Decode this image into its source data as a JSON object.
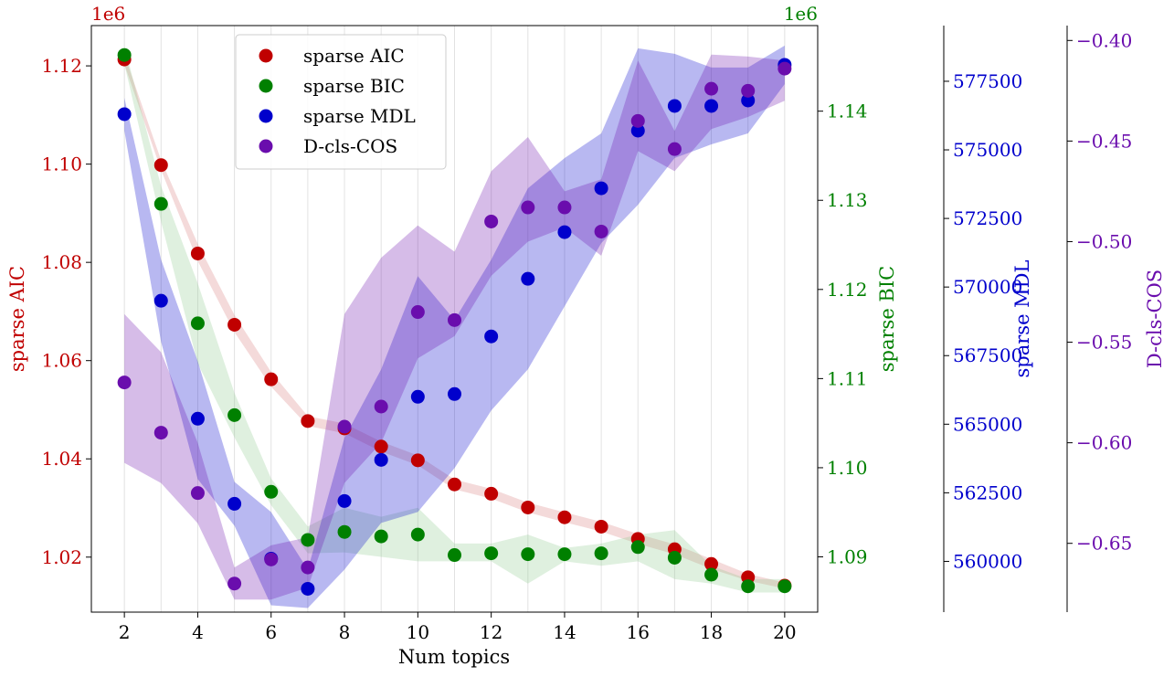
{
  "chart_data": {
    "type": "scatter",
    "xlabel": "Num topics",
    "x": [
      2,
      3,
      4,
      5,
      6,
      7,
      8,
      9,
      10,
      11,
      12,
      13,
      14,
      15,
      16,
      17,
      18,
      19,
      20
    ],
    "xlim": [
      1.1,
      20.9
    ],
    "xticks": [
      2,
      4,
      6,
      8,
      10,
      12,
      14,
      16,
      18,
      20
    ],
    "legend_position": "top-left",
    "axes": [
      {
        "name": "sparse AIC",
        "ylabel": "sparse AIC",
        "color": "#c00000",
        "side": "left",
        "offset_label": "1e6",
        "ylim": [
          1.0088,
          1.1282
        ],
        "ticks": [
          1.02,
          1.04,
          1.06,
          1.08,
          1.1,
          1.12
        ],
        "tick_labels": [
          "1.02",
          "1.04",
          "1.06",
          "1.08",
          "1.10",
          "1.12"
        ]
      },
      {
        "name": "sparse BIC",
        "ylabel": "sparse BIC",
        "color": "#008000",
        "side": "right",
        "offset_label": "1e6",
        "ylim": [
          1.0838,
          1.1496
        ],
        "ticks": [
          1.09,
          1.1,
          1.11,
          1.12,
          1.13,
          1.14
        ],
        "tick_labels": [
          "1.09",
          "1.10",
          "1.11",
          "1.12",
          "1.13",
          "1.14"
        ]
      },
      {
        "name": "sparse MDL",
        "ylabel": "sparse MDL",
        "color": "#0000cc",
        "side": "right",
        "offset_label": "",
        "ylim": [
          558150,
          579530
        ],
        "ticks": [
          560000,
          562500,
          565000,
          567500,
          570000,
          572500,
          575000,
          577500
        ],
        "tick_labels": [
          "560000",
          "562500",
          "565000",
          "567500",
          "570000",
          "572500",
          "575000",
          "577500"
        ]
      },
      {
        "name": "D-cls-COS",
        "ylabel": "D-cls-COS",
        "color": "#6a0dad",
        "side": "right",
        "offset_label": "",
        "ylim": [
          -0.6842,
          -0.3926
        ],
        "ticks": [
          -0.65,
          -0.6,
          -0.55,
          -0.5,
          -0.45,
          -0.4
        ],
        "tick_labels": [
          "−0.65",
          "−0.60",
          "−0.55",
          "−0.50",
          "−0.45",
          "−0.40"
        ]
      }
    ],
    "series": [
      {
        "name": "sparse AIC",
        "axis": 0,
        "color": "#c00000",
        "band_color": "#d97b7b",
        "values": [
          1.1213,
          1.0998,
          1.0818,
          1.0673,
          1.0562,
          1.0477,
          1.0462,
          1.0425,
          1.0397,
          1.0348,
          1.0329,
          1.0301,
          1.0281,
          1.0262,
          1.0237,
          1.0216,
          1.0186,
          1.0159,
          1.0142
        ],
        "band_upper": [
          1.1223,
          1.1008,
          1.0838,
          1.0693,
          1.0577,
          1.0487,
          1.0472,
          1.0435,
          1.0407,
          1.0358,
          1.0339,
          1.0311,
          1.0291,
          1.0272,
          1.0247,
          1.0226,
          1.0196,
          1.0166,
          1.0148
        ],
        "band_lower": [
          1.1203,
          1.0988,
          1.0803,
          1.0658,
          1.0547,
          1.0467,
          1.0452,
          1.0415,
          1.0387,
          1.0338,
          1.0319,
          1.0291,
          1.0271,
          1.0252,
          1.0227,
          1.0206,
          1.0176,
          1.0152,
          1.0136
        ]
      },
      {
        "name": "sparse BIC",
        "axis": 1,
        "color": "#008000",
        "band_color": "#8cc88c",
        "values": [
          1.1463,
          1.1296,
          1.1162,
          1.1059,
          1.0973,
          1.0919,
          1.0928,
          1.0923,
          1.0925,
          1.0902,
          1.0904,
          1.0903,
          1.0903,
          1.0904,
          1.0911,
          1.0899,
          1.088,
          1.0867,
          1.0867
        ],
        "band_upper": [
          1.1473,
          1.1316,
          1.1207,
          1.1084,
          1.0988,
          1.0934,
          1.0955,
          1.0945,
          1.0955,
          1.0915,
          1.0915,
          1.0925,
          1.091,
          1.0915,
          1.0925,
          1.093,
          1.089,
          1.0875,
          1.0875
        ],
        "band_lower": [
          1.1453,
          1.1276,
          1.1117,
          1.1034,
          1.0958,
          1.0904,
          1.0905,
          1.09,
          1.0895,
          1.0895,
          1.0895,
          1.087,
          1.0895,
          1.089,
          1.0895,
          1.0875,
          1.087,
          1.086,
          1.086
        ]
      },
      {
        "name": "sparse MDL",
        "axis": 2,
        "color": "#0000cc",
        "values": [
          576300,
          569500,
          565200,
          562100,
          560100,
          559000,
          562200,
          563700,
          566000,
          566100,
          568200,
          570300,
          572000,
          573600,
          575700,
          576600,
          576600,
          576800,
          578100
        ],
        "band_upper": [
          576900,
          571000,
          567300,
          562900,
          561800,
          559700,
          564500,
          567000,
          570400,
          568800,
          571000,
          573600,
          574700,
          575600,
          578700,
          578500,
          578000,
          578000,
          578800
        ],
        "band_lower": [
          575700,
          568000,
          563000,
          561300,
          558400,
          558300,
          559700,
          561400,
          561800,
          563400,
          565500,
          567000,
          569300,
          571600,
          573000,
          574700,
          575200,
          575600,
          577400
        ]
      },
      {
        "name": "D-cls-COS",
        "axis": 3,
        "color": "#6a0dad",
        "values": [
          -0.57,
          -0.595,
          -0.625,
          -0.67,
          -0.658,
          -0.662,
          -0.592,
          -0.582,
          -0.535,
          -0.539,
          -0.49,
          -0.483,
          -0.483,
          -0.495,
          -0.44,
          -0.454,
          -0.424,
          -0.425,
          -0.414
        ],
        "band_upper": [
          -0.536,
          -0.555,
          -0.6,
          -0.662,
          -0.651,
          -0.647,
          -0.536,
          -0.508,
          -0.492,
          -0.505,
          -0.465,
          -0.448,
          -0.475,
          -0.469,
          -0.41,
          -0.445,
          -0.407,
          -0.408,
          -0.41
        ],
        "band_lower": [
          -0.61,
          -0.62,
          -0.64,
          -0.678,
          -0.678,
          -0.672,
          -0.62,
          -0.6,
          -0.558,
          -0.547,
          -0.517,
          -0.5,
          -0.493,
          -0.507,
          -0.455,
          -0.465,
          -0.444,
          -0.438,
          -0.43
        ]
      }
    ]
  }
}
